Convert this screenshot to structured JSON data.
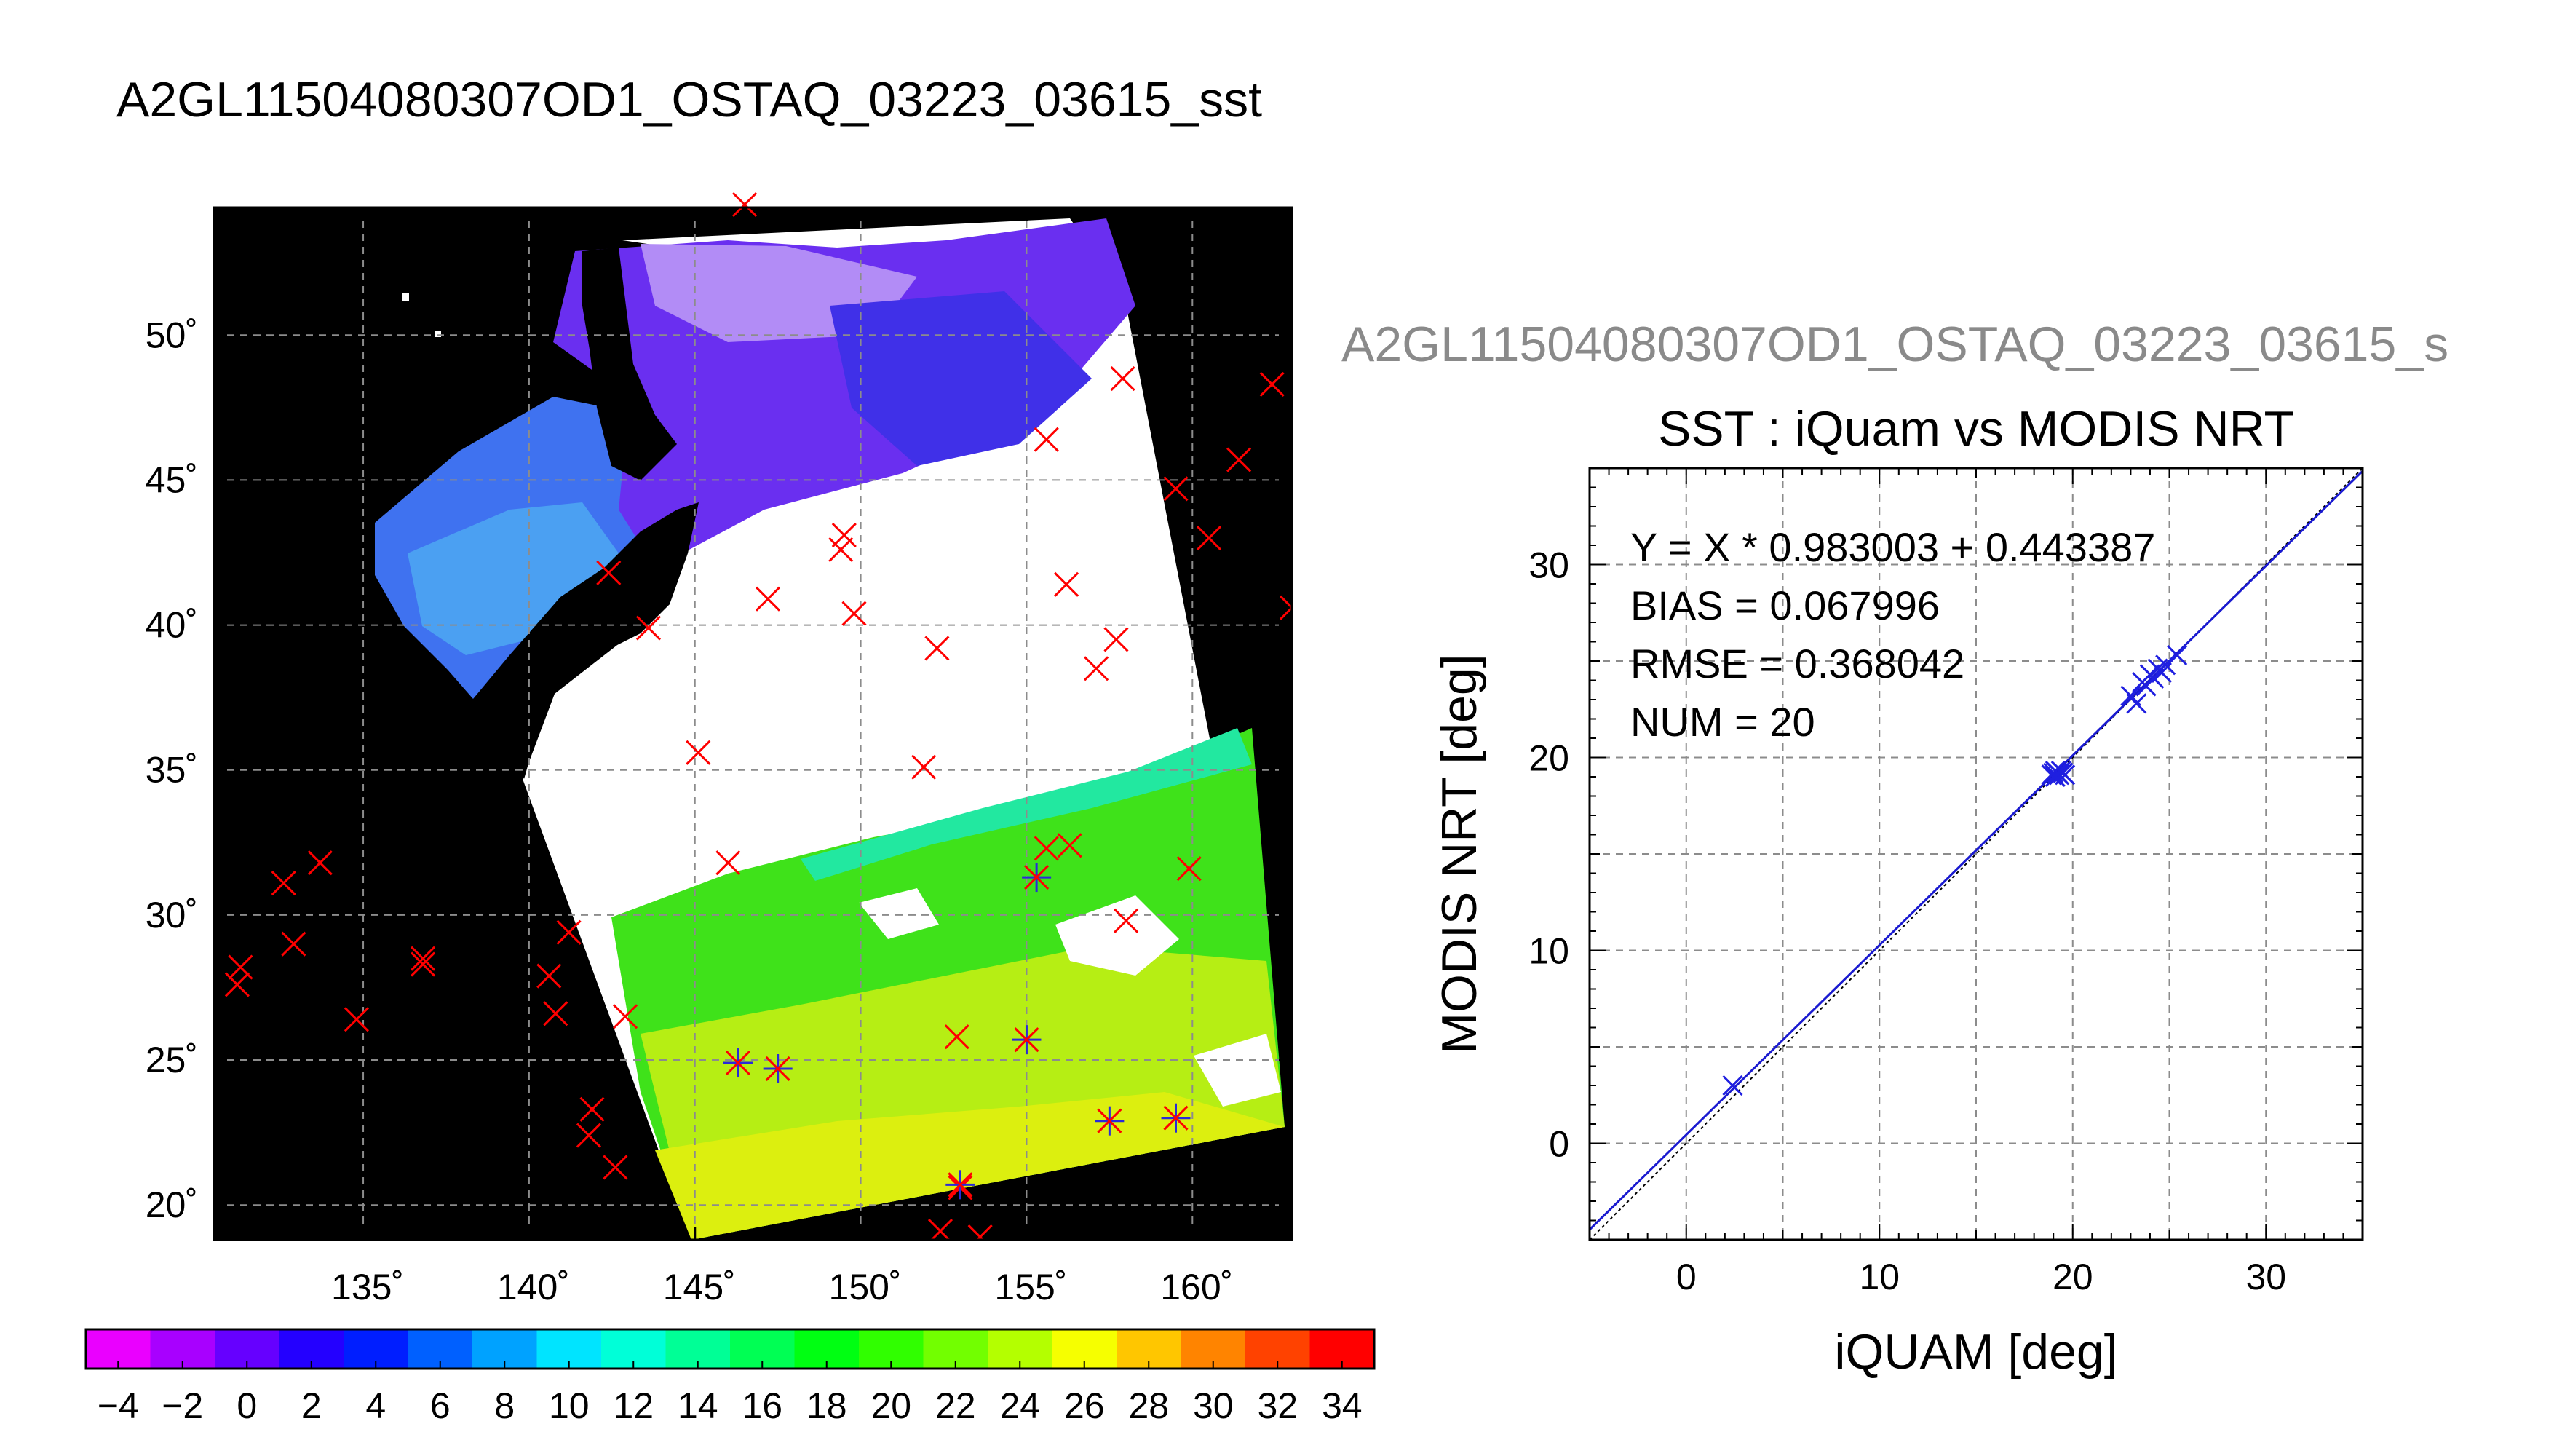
{
  "page_title": "A2GL11504080307OD1_OSTAQ_03223_03615_sst",
  "chart_data": [
    {
      "type": "heatmap",
      "title": "A2GL11504080307OD1_OSTAQ_03223_03615_sst",
      "lon_range": [
        130.5,
        163.0
      ],
      "lat_range": [
        18.8,
        54.4
      ],
      "lon_ticks": [
        135,
        140,
        145,
        150,
        155,
        160
      ],
      "lon_tick_labels": [
        "135˚",
        "140˚",
        "145˚",
        "150˚",
        "155˚",
        "160˚"
      ],
      "lat_ticks": [
        20,
        25,
        30,
        35,
        40,
        45,
        50
      ],
      "lat_tick_labels": [
        "20˚",
        "25˚",
        "30˚",
        "35˚",
        "40˚",
        "45˚",
        "50˚"
      ],
      "grid": true,
      "colorbar": {
        "range": [
          -5,
          35
        ],
        "bins": 20,
        "tick_labels": [
          "−4",
          "−2",
          "0",
          "2",
          "4",
          "6",
          "8",
          "10",
          "12",
          "14",
          "16",
          "18",
          "20",
          "22",
          "24",
          "26",
          "28",
          "30",
          "32",
          "34"
        ]
      },
      "markers_buoy": [
        [
          131.2,
          27.6
        ],
        [
          131.3,
          28.2
        ],
        [
          132.6,
          31.1
        ],
        [
          132.9,
          29.0
        ],
        [
          133.7,
          31.8
        ],
        [
          134.8,
          26.4
        ],
        [
          136.8,
          28.3
        ],
        [
          136.8,
          28.5
        ],
        [
          140.6,
          27.9
        ],
        [
          140.8,
          26.6
        ],
        [
          141.2,
          29.4
        ],
        [
          141.8,
          22.4
        ],
        [
          141.9,
          23.3
        ],
        [
          142.6,
          21.3
        ],
        [
          142.9,
          26.5
        ],
        [
          142.4,
          41.8
        ],
        [
          143.6,
          39.9
        ],
        [
          145.1,
          35.6
        ],
        [
          146.0,
          31.8
        ],
        [
          147.2,
          40.9
        ],
        [
          149.4,
          42.6
        ],
        [
          149.5,
          43.1
        ],
        [
          149.8,
          40.4
        ],
        [
          151.9,
          35.1
        ],
        [
          152.3,
          39.2
        ],
        [
          152.9,
          25.8
        ],
        [
          153.0,
          20.6
        ],
        [
          152.4,
          19.1
        ],
        [
          153.6,
          18.9
        ],
        [
          155.6,
          46.4
        ],
        [
          155.6,
          32.3
        ],
        [
          156.3,
          32.4
        ],
        [
          156.2,
          41.4
        ],
        [
          157.1,
          38.5
        ],
        [
          157.7,
          39.5
        ],
        [
          158.0,
          29.8
        ],
        [
          157.9,
          48.5
        ],
        [
          159.5,
          44.7
        ],
        [
          159.9,
          31.6
        ],
        [
          160.5,
          43.0
        ],
        [
          161.4,
          45.7
        ],
        [
          162.4,
          48.3
        ],
        [
          163.0,
          40.6
        ],
        [
          146.5,
          54.5
        ]
      ],
      "markers_matched": [
        [
          146.3,
          24.9
        ],
        [
          147.5,
          24.7
        ],
        [
          155.3,
          31.3
        ],
        [
          155.0,
          25.7
        ],
        [
          157.5,
          22.9
        ],
        [
          159.5,
          23.0
        ],
        [
          153.0,
          20.7
        ]
      ]
    },
    {
      "type": "scatter",
      "supertitle": "A2GL11504080307OD1_OSTAQ_03223_03615_s",
      "title": "SST : iQuam vs MODIS NRT",
      "xlabel": "iQUAM [deg]",
      "ylabel": "MODIS NRT [deg]",
      "xlim": [
        -5,
        35
      ],
      "ylim": [
        -5,
        35
      ],
      "x_ticks": [
        0,
        10,
        20,
        30
      ],
      "x_tick_labels": [
        "0",
        "10",
        "20",
        "30"
      ],
      "y_ticks": [
        0,
        10,
        20,
        30
      ],
      "y_tick_labels": [
        "0",
        "10",
        "20",
        "30"
      ],
      "grid": true,
      "fit": {
        "slope": 0.983003,
        "intercept": 0.443387
      },
      "annotations": [
        "Y = X * 0.983003 + 0.443387",
        "BIAS = 0.067996",
        "RMSE = 0.368042",
        "NUM = 20"
      ],
      "x": [
        2.4,
        18.9,
        19.0,
        19.1,
        19.2,
        19.3,
        19.4,
        19.5,
        19.6,
        23.0,
        23.3,
        23.6,
        23.8,
        24.0,
        24.2,
        24.4,
        24.6,
        24.8,
        25.4,
        19.1
      ],
      "y": [
        3.0,
        19.1,
        19.2,
        19.3,
        19.2,
        19.1,
        19.3,
        19.2,
        19.1,
        23.2,
        22.8,
        23.9,
        23.7,
        24.3,
        24.1,
        24.6,
        24.4,
        24.8,
        25.3,
        19.0
      ]
    }
  ]
}
